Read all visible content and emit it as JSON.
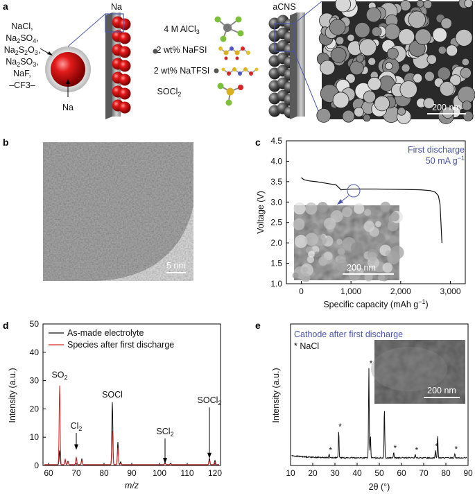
{
  "panel_labels": {
    "a": "a",
    "b": "b",
    "c": "c",
    "d": "d",
    "e": "e"
  },
  "panel_a": {
    "na_title": "Na",
    "acns_title": "aCNS",
    "sei_list": [
      "NaCl,",
      "Na2SO4,",
      "Na2S2O3,",
      "Na2SO3,",
      "NaF,",
      "–CF3–"
    ],
    "sphere_label": "Na",
    "electrolyte": [
      "4 M AlCl3",
      "2 wt% NaFSI",
      "2 wt% NaTFSI",
      "SOCl2"
    ],
    "scale_bar": "200 nm"
  },
  "panel_b": {
    "scale_bar": "5 nm"
  },
  "colors": {
    "black_trace": "#111111",
    "red_trace": "#d62728",
    "accent_blue": "#4a55a8"
  },
  "chart_data": [
    {
      "panel": "c",
      "type": "line",
      "xlabel": "Specific capacity (mAh g⁻¹)",
      "ylabel": "Voltage (V)",
      "xlim": [
        -300,
        3300
      ],
      "ylim": [
        1.0,
        4.5
      ],
      "xticks": [
        "0",
        "1,000",
        "2,000",
        "3,000"
      ],
      "yticks": [
        "1.0",
        "1.5",
        "2.0",
        "2.5",
        "3.0",
        "3.5",
        "4.0",
        "4.5"
      ],
      "annotation": [
        "First discharge",
        "50 mA g⁻¹"
      ],
      "inset_scale_bar": "200 nm",
      "series": [
        {
          "x": [
            0,
            50,
            150,
            300,
            500,
            700,
            800,
            1000,
            1500,
            2000,
            2400,
            2600,
            2700,
            2760,
            2790,
            2810,
            2830
          ],
          "y": [
            3.6,
            3.55,
            3.52,
            3.5,
            3.46,
            3.42,
            3.3,
            3.32,
            3.32,
            3.31,
            3.3,
            3.28,
            3.24,
            3.15,
            2.95,
            2.5,
            2.0
          ]
        }
      ]
    },
    {
      "panel": "d",
      "type": "line",
      "xlabel": "m/z",
      "ylabel": "Intensity (a.u.)",
      "xlim": [
        58,
        122
      ],
      "ylim": [
        0,
        50
      ],
      "xticks": [
        "60",
        "70",
        "80",
        "90",
        "100",
        "110",
        "120"
      ],
      "yticks": [
        "0",
        "10",
        "20",
        "30",
        "40",
        "50"
      ],
      "legend_position": "top-left",
      "peak_labels": [
        {
          "text": "SO2",
          "x": 64,
          "y": 31
        },
        {
          "text": "Cl2",
          "x": 70,
          "y": 13
        },
        {
          "text": "SOCl",
          "x": 83,
          "y": 24
        },
        {
          "text": "SCl2",
          "x": 102,
          "y": 11
        },
        {
          "text": "SOCl2",
          "x": 118,
          "y": 22
        }
      ],
      "series": [
        {
          "name": "As-made electrolyte",
          "peaks": [
            [
              64,
              5
            ],
            [
              66,
              1.5
            ],
            [
              67,
              1.2
            ],
            [
              70,
              2.5
            ],
            [
              72,
              2
            ],
            [
              83,
              22
            ],
            [
              85,
              8
            ],
            [
              86,
              1
            ],
            [
              102,
              0.8
            ],
            [
              104,
              0.5
            ],
            [
              118,
              2.2
            ],
            [
              120,
              1.5
            ]
          ]
        },
        {
          "name": "Species after first discharge",
          "peaks": [
            [
              64,
              28
            ],
            [
              66,
              2
            ],
            [
              67,
              1
            ],
            [
              70,
              2.5
            ],
            [
              72,
              1.5
            ],
            [
              83,
              12
            ],
            [
              85,
              6
            ],
            [
              86,
              0.5
            ],
            [
              102,
              0.5
            ],
            [
              104,
              0.3
            ],
            [
              118,
              1.5
            ],
            [
              120,
              1
            ]
          ]
        }
      ]
    },
    {
      "panel": "e",
      "type": "line",
      "xlabel": "2θ (°)",
      "ylabel": "Intensity (a.u.)",
      "xlim": [
        10,
        90
      ],
      "xticks": [
        "10",
        "20",
        "30",
        "40",
        "50",
        "60",
        "70",
        "80",
        "90"
      ],
      "title": "Cathode after first discharge",
      "legend": "* NaCl",
      "inset_scale_bar": "200 nm",
      "peaks": [
        [
          27.4,
          0.04
        ],
        [
          31.7,
          0.3
        ],
        [
          45.3,
          1.0
        ],
        [
          46.0,
          0.25
        ],
        [
          52.3,
          0.55
        ],
        [
          56.5,
          0.06
        ],
        [
          66.2,
          0.04
        ],
        [
          75.3,
          0.08
        ],
        [
          76.3,
          0.25
        ],
        [
          84.0,
          0.05
        ]
      ],
      "nacl_marks": [
        27.4,
        31.7,
        45.6,
        56.5,
        66.2,
        75.3,
        84.0
      ]
    }
  ]
}
